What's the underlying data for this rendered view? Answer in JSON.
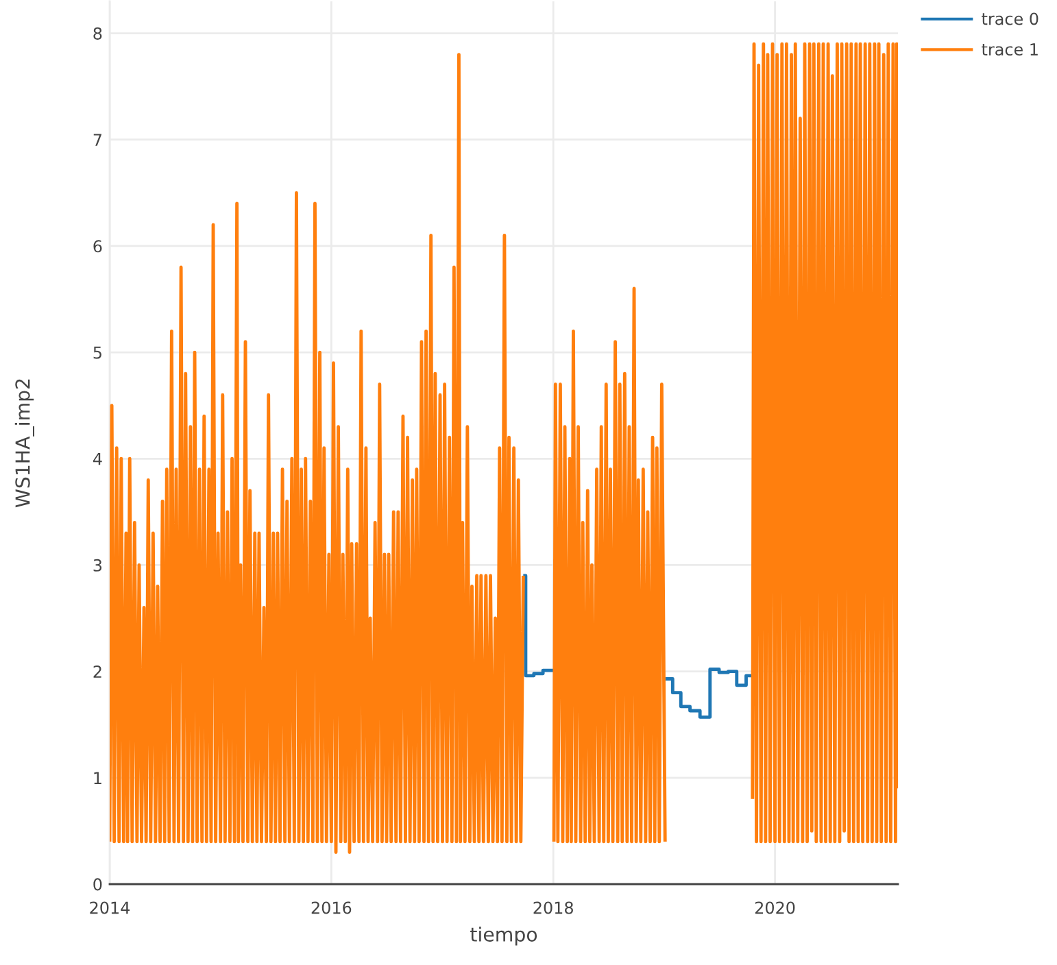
{
  "chart_data": {
    "type": "line",
    "xlabel": "tiempo",
    "ylabel": "WS1HA_imp2",
    "xlim": [
      "2014-01-01",
      "2021-02-09"
    ],
    "xticks": [
      {
        "value": "2014-01-01",
        "label": "2014"
      },
      {
        "value": "2016-01-01",
        "label": "2016"
      },
      {
        "value": "2018-01-01",
        "label": "2018"
      },
      {
        "value": "2020-01-01",
        "label": "2020"
      }
    ],
    "ylim": [
      0,
      8.3
    ],
    "yticks": [
      0,
      1,
      2,
      3,
      4,
      5,
      6,
      7,
      8
    ],
    "grid": true,
    "legend": "top right",
    "line_style": "solid",
    "series": [
      {
        "name": "trace 0",
        "type": "step",
        "color": "#1f77b4",
        "x": [
          "2017-09-24",
          "2017-10-02",
          "2017-10-29",
          "2017-11-28",
          "2018-01-03",
          "2019-01-05",
          "2019-01-29",
          "2019-02-25",
          "2019-03-27",
          "2019-04-29",
          "2019-06-01",
          "2019-07-01",
          "2019-07-31",
          "2019-08-28",
          "2019-09-28",
          "2019-10-19"
        ],
        "values": [
          2.9,
          1.96,
          1.98,
          2.01,
          null,
          1.93,
          1.8,
          1.67,
          1.63,
          1.57,
          2.02,
          1.99,
          2.0,
          1.87,
          1.96,
          1.96
        ]
      },
      {
        "name": "trace 1",
        "color": "#ff7f0e",
        "x": [
          "2014-01-01",
          "2014-01-08",
          "2014-01-16",
          "2014-01-24",
          "2014-02-01",
          "2014-02-08",
          "2014-02-16",
          "2014-02-24",
          "2014-03-01",
          "2014-03-08",
          "2014-03-16",
          "2014-03-24",
          "2014-04-01",
          "2014-04-08",
          "2014-04-16",
          "2014-04-24",
          "2014-05-01",
          "2014-05-08",
          "2014-05-16",
          "2014-05-24",
          "2014-06-01",
          "2014-06-08",
          "2014-06-16",
          "2014-06-24",
          "2014-07-01",
          "2014-07-08",
          "2014-07-16",
          "2014-07-24",
          "2014-08-01",
          "2014-08-08",
          "2014-08-16",
          "2014-08-24",
          "2014-09-01",
          "2014-09-08",
          "2014-09-16",
          "2014-09-24",
          "2014-10-01",
          "2014-10-08",
          "2014-10-16",
          "2014-10-24",
          "2014-11-01",
          "2014-11-08",
          "2014-11-16",
          "2014-11-24",
          "2014-12-01",
          "2014-12-08",
          "2014-12-16",
          "2014-12-24",
          "2015-01-01",
          "2015-01-08",
          "2015-01-16",
          "2015-01-24",
          "2015-02-01",
          "2015-02-08",
          "2015-02-16",
          "2015-02-24",
          "2015-03-01",
          "2015-03-08",
          "2015-03-16",
          "2015-03-24",
          "2015-04-01",
          "2015-04-08",
          "2015-04-16",
          "2015-04-24",
          "2015-05-01",
          "2015-05-08",
          "2015-05-16",
          "2015-05-24",
          "2015-06-01",
          "2015-06-08",
          "2015-06-16",
          "2015-06-24",
          "2015-07-01",
          "2015-07-08",
          "2015-07-16",
          "2015-07-24",
          "2015-08-01",
          "2015-08-08",
          "2015-08-16",
          "2015-08-24",
          "2015-09-01",
          "2015-09-08",
          "2015-09-16",
          "2015-09-24",
          "2015-10-01",
          "2015-10-08",
          "2015-10-16",
          "2015-10-24",
          "2015-11-01",
          "2015-11-08",
          "2015-11-16",
          "2015-11-24",
          "2015-12-01",
          "2015-12-08",
          "2015-12-16",
          "2015-12-24",
          "2016-01-01",
          "2016-01-08",
          "2016-01-16",
          "2016-01-24",
          "2016-02-01",
          "2016-02-08",
          "2016-02-16",
          "2016-02-24",
          "2016-03-01",
          "2016-03-08",
          "2016-03-16",
          "2016-03-24",
          "2016-04-01",
          "2016-04-08",
          "2016-04-16",
          "2016-04-24",
          "2016-05-01",
          "2016-05-08",
          "2016-05-16",
          "2016-05-24",
          "2016-06-01",
          "2016-06-08",
          "2016-06-16",
          "2016-06-24",
          "2016-07-01",
          "2016-07-08",
          "2016-07-16",
          "2016-07-24",
          "2016-08-01",
          "2016-08-08",
          "2016-08-16",
          "2016-08-24",
          "2016-09-01",
          "2016-09-08",
          "2016-09-16",
          "2016-09-24",
          "2016-10-01",
          "2016-10-08",
          "2016-10-16",
          "2016-10-24",
          "2016-11-01",
          "2016-11-08",
          "2016-11-16",
          "2016-11-24",
          "2016-12-01",
          "2016-12-08",
          "2016-12-16",
          "2016-12-24",
          "2017-01-01",
          "2017-01-08",
          "2017-01-16",
          "2017-01-24",
          "2017-02-01",
          "2017-02-08",
          "2017-02-16",
          "2017-02-24",
          "2017-03-01",
          "2017-03-08",
          "2017-03-16",
          "2017-03-24",
          "2017-04-01",
          "2017-04-08",
          "2017-04-16",
          "2017-04-24",
          "2017-05-01",
          "2017-05-08",
          "2017-05-16",
          "2017-05-24",
          "2017-06-01",
          "2017-06-08",
          "2017-06-16",
          "2017-06-24",
          "2017-07-01",
          "2017-07-08",
          "2017-07-16",
          "2017-07-24",
          "2017-08-01",
          "2017-08-08",
          "2017-08-16",
          "2017-08-24",
          "2017-09-01",
          "2017-09-08",
          "2017-09-16",
          "2017-09-24",
          "2017-11-01",
          "2018-01-03",
          "2018-01-08",
          "2018-01-16",
          "2018-01-24",
          "2018-02-01",
          "2018-02-08",
          "2018-02-16",
          "2018-02-24",
          "2018-03-01",
          "2018-03-08",
          "2018-03-16",
          "2018-03-24",
          "2018-04-01",
          "2018-04-08",
          "2018-04-16",
          "2018-04-24",
          "2018-05-01",
          "2018-05-08",
          "2018-05-16",
          "2018-05-24",
          "2018-06-01",
          "2018-06-08",
          "2018-06-16",
          "2018-06-24",
          "2018-07-01",
          "2018-07-08",
          "2018-07-16",
          "2018-07-24",
          "2018-08-01",
          "2018-08-08",
          "2018-08-16",
          "2018-08-24",
          "2018-09-01",
          "2018-09-08",
          "2018-09-16",
          "2018-09-24",
          "2018-10-01",
          "2018-10-08",
          "2018-10-16",
          "2018-10-24",
          "2018-11-01",
          "2018-11-08",
          "2018-11-16",
          "2018-11-24",
          "2018-12-01",
          "2018-12-08",
          "2018-12-16",
          "2018-12-24",
          "2019-01-04",
          "2019-06-01",
          "2019-10-19",
          "2019-10-24",
          "2019-11-01",
          "2019-11-08",
          "2019-11-16",
          "2019-11-24",
          "2019-12-01",
          "2019-12-08",
          "2019-12-16",
          "2019-12-24",
          "2020-01-01",
          "2020-01-08",
          "2020-01-16",
          "2020-01-24",
          "2020-02-01",
          "2020-02-08",
          "2020-02-16",
          "2020-02-24",
          "2020-03-01",
          "2020-03-08",
          "2020-03-16",
          "2020-03-24",
          "2020-04-01",
          "2020-04-08",
          "2020-04-16",
          "2020-04-24",
          "2020-05-01",
          "2020-05-08",
          "2020-05-16",
          "2020-05-24",
          "2020-06-01",
          "2020-06-08",
          "2020-06-16",
          "2020-06-24",
          "2020-07-01",
          "2020-07-08",
          "2020-07-16",
          "2020-07-24",
          "2020-08-01",
          "2020-08-08",
          "2020-08-16",
          "2020-08-24",
          "2020-09-01",
          "2020-09-08",
          "2020-09-16",
          "2020-09-24",
          "2020-10-01",
          "2020-10-08",
          "2020-10-16",
          "2020-10-24",
          "2020-11-01",
          "2020-11-08",
          "2020-11-16",
          "2020-11-24",
          "2020-12-01",
          "2020-12-08",
          "2020-12-16",
          "2020-12-24",
          "2021-01-01",
          "2021-01-08",
          "2021-01-16",
          "2021-01-24",
          "2021-02-01",
          "2021-02-05",
          "2021-02-09"
        ],
        "values": [
          0.4,
          4.5,
          0.4,
          4.1,
          0.4,
          4.0,
          0.4,
          3.3,
          0.4,
          4.0,
          0.4,
          3.4,
          0.4,
          3.0,
          0.4,
          2.6,
          0.4,
          3.8,
          0.4,
          3.3,
          0.4,
          2.8,
          0.4,
          3.6,
          0.4,
          3.9,
          0.4,
          5.2,
          0.4,
          3.9,
          0.4,
          5.8,
          0.4,
          4.8,
          0.4,
          4.3,
          0.4,
          5.0,
          0.4,
          3.9,
          0.4,
          4.4,
          0.4,
          3.9,
          0.4,
          6.2,
          0.4,
          3.3,
          0.4,
          4.6,
          0.4,
          3.5,
          0.4,
          4.0,
          0.4,
          6.4,
          0.4,
          3.0,
          0.4,
          5.1,
          0.4,
          3.7,
          0.4,
          3.3,
          0.4,
          3.3,
          0.4,
          2.6,
          0.4,
          4.6,
          0.4,
          3.3,
          0.4,
          3.3,
          0.4,
          3.9,
          0.4,
          3.6,
          0.4,
          4.0,
          0.4,
          6.5,
          0.4,
          3.9,
          0.4,
          4.0,
          0.4,
          3.6,
          0.4,
          6.4,
          0.4,
          5.0,
          0.4,
          4.1,
          0.4,
          3.1,
          0.4,
          4.9,
          0.3,
          4.3,
          0.4,
          3.1,
          0.4,
          3.9,
          0.3,
          3.2,
          0.4,
          3.2,
          0.4,
          5.2,
          0.4,
          4.1,
          0.4,
          2.5,
          0.4,
          3.4,
          0.4,
          4.7,
          0.4,
          3.1,
          0.4,
          3.1,
          0.4,
          3.5,
          0.4,
          3.5,
          0.4,
          4.4,
          0.4,
          4.2,
          0.4,
          3.8,
          0.4,
          3.9,
          0.4,
          5.1,
          0.4,
          5.2,
          0.4,
          6.1,
          0.4,
          4.8,
          0.4,
          4.6,
          0.4,
          4.7,
          0.4,
          4.2,
          0.4,
          5.8,
          0.4,
          7.8,
          0.4,
          3.4,
          0.4,
          4.3,
          0.4,
          2.8,
          0.4,
          2.9,
          0.4,
          2.9,
          0.4,
          2.9,
          0.4,
          2.9,
          0.4,
          2.5,
          0.4,
          4.1,
          0.4,
          6.1,
          0.4,
          4.2,
          0.4,
          4.1,
          0.4,
          3.8,
          0.4,
          2.9,
          null,
          0.4,
          4.7,
          0.4,
          4.7,
          0.4,
          4.3,
          0.4,
          4.0,
          0.4,
          5.2,
          0.4,
          4.3,
          0.4,
          3.4,
          0.4,
          3.7,
          0.4,
          3.0,
          0.4,
          3.9,
          0.4,
          4.3,
          0.4,
          4.7,
          0.4,
          3.9,
          0.4,
          5.1,
          0.4,
          4.7,
          0.4,
          4.8,
          0.4,
          4.3,
          0.4,
          5.6,
          0.4,
          3.8,
          0.4,
          3.9,
          0.4,
          3.5,
          0.4,
          4.2,
          0.4,
          4.1,
          0.4,
          4.7,
          0.4,
          null,
          0.8,
          7.9,
          0.4,
          7.7,
          0.4,
          7.9,
          0.4,
          7.8,
          0.4,
          7.9,
          0.4,
          7.8,
          0.4,
          7.9,
          0.4,
          7.9,
          0.4,
          7.8,
          0.4,
          7.9,
          0.4,
          7.2,
          0.4,
          7.9,
          0.4,
          7.9,
          0.5,
          7.9,
          0.4,
          7.9,
          0.4,
          7.9,
          0.4,
          7.9,
          0.4,
          7.6,
          0.4,
          7.9,
          0.4,
          7.9,
          0.5,
          7.9,
          0.4,
          7.9,
          0.4,
          7.9,
          0.4,
          7.9,
          0.4,
          7.9,
          0.4,
          7.9,
          0.4,
          7.9,
          0.4,
          7.9,
          0.4,
          7.8,
          0.4,
          7.9,
          0.4,
          7.9,
          0.4,
          7.9,
          0.9
        ]
      }
    ]
  }
}
